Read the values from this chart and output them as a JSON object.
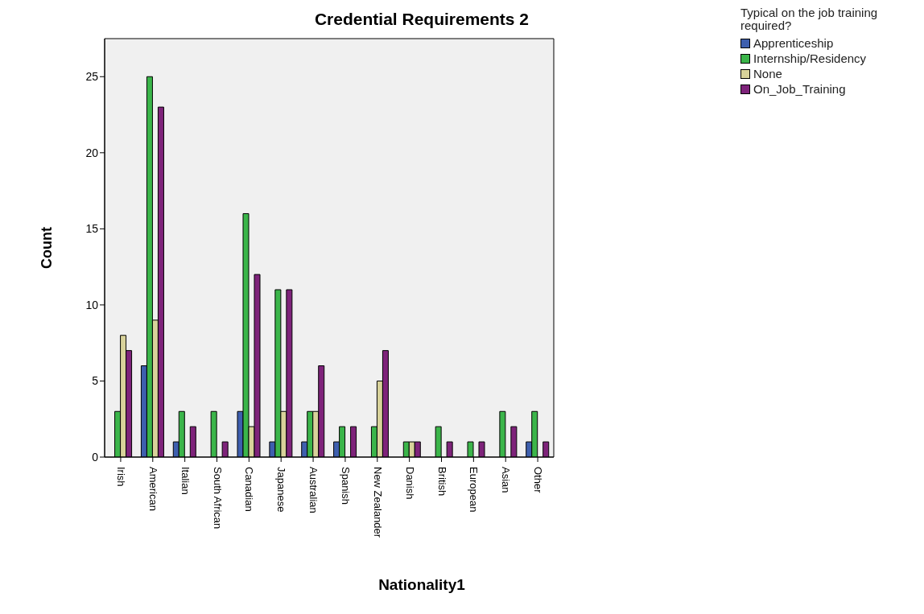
{
  "chart_data": {
    "type": "bar",
    "title": "Credential Requirements 2",
    "xlabel": "Nationality1",
    "ylabel": "Count",
    "legend_title": "Typical on the job training required?",
    "categories": [
      "Irish",
      "American",
      "Italian",
      "South African",
      "Canadian",
      "Japanese",
      "Australian",
      "Spanish",
      "New Zealander",
      "Danish",
      "British",
      "European",
      "Asian",
      "Other"
    ],
    "series": [
      {
        "name": "Apprenticeship",
        "color": "#3e5fae",
        "values": [
          0,
          6,
          1,
          0,
          3,
          1,
          1,
          1,
          0,
          0,
          0,
          0,
          0,
          1
        ]
      },
      {
        "name": "Internship/Residency",
        "color": "#3bb54a",
        "values": [
          3,
          25,
          3,
          3,
          16,
          11,
          3,
          2,
          2,
          1,
          2,
          1,
          3,
          3
        ]
      },
      {
        "name": "None",
        "color": "#d8d29a",
        "values": [
          8,
          9,
          0,
          0,
          2,
          3,
          3,
          0,
          5,
          1,
          0,
          0,
          0,
          0
        ]
      },
      {
        "name": "On_Job_Training",
        "color": "#7e237a",
        "values": [
          7,
          23,
          2,
          1,
          12,
          11,
          6,
          2,
          7,
          1,
          1,
          1,
          2,
          1
        ]
      }
    ],
    "ylim": [
      0,
      27.5
    ],
    "yticks": [
      0,
      5,
      10,
      15,
      20,
      25
    ],
    "grid": false,
    "legend": "top right"
  }
}
